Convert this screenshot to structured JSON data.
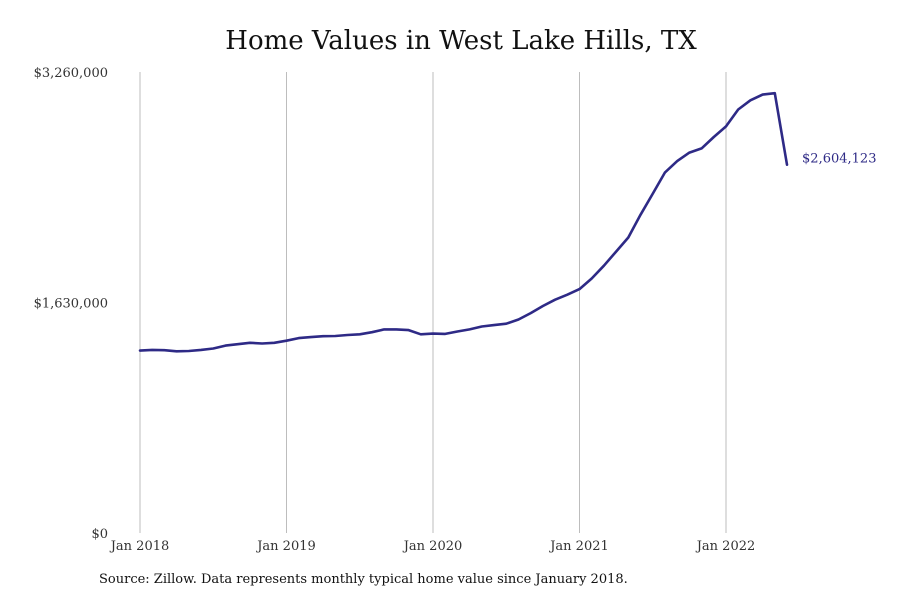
{
  "chart_data": {
    "type": "line",
    "title": "Home Values in West Lake Hills, TX",
    "xlabel": "",
    "ylabel": "",
    "y_tick_values": [
      0,
      1630000,
      3260000
    ],
    "y_tick_labels": [
      "$0",
      "$1,630,000",
      "$3,260,000"
    ],
    "ylim": [
      0,
      3260000
    ],
    "x_tick_labels": [
      "Jan 2018",
      "Jan 2019",
      "Jan 2020",
      "Jan 2021",
      "Jan 2022"
    ],
    "grid": "vertical",
    "legend": "none",
    "colors": {
      "line": "#2e2a86",
      "grid": "#bdbdbd"
    },
    "end_label": "$2,604,123",
    "series": [
      {
        "x": [
          "2018-01",
          "2018-02",
          "2018-03",
          "2018-04",
          "2018-05",
          "2018-06",
          "2018-07",
          "2018-08",
          "2018-09",
          "2018-10",
          "2018-11",
          "2018-12",
          "2019-01",
          "2019-02",
          "2019-03",
          "2019-04",
          "2019-05",
          "2019-06",
          "2019-07",
          "2019-08",
          "2019-09",
          "2019-10",
          "2019-11",
          "2019-12",
          "2020-01",
          "2020-02",
          "2020-03",
          "2020-04",
          "2020-05",
          "2020-06",
          "2020-07",
          "2020-08",
          "2020-09",
          "2020-10",
          "2020-11",
          "2020-12",
          "2021-01",
          "2021-02",
          "2021-03",
          "2021-04",
          "2021-05",
          "2021-06",
          "2021-07",
          "2021-08",
          "2021-09",
          "2021-10",
          "2021-11",
          "2021-12",
          "2022-01",
          "2022-02",
          "2022-03",
          "2022-04",
          "2022-05",
          "2022-06"
        ],
        "values": [
          1290000,
          1295000,
          1293000,
          1285000,
          1287000,
          1295000,
          1305000,
          1325000,
          1335000,
          1345000,
          1340000,
          1345000,
          1360000,
          1378000,
          1385000,
          1392000,
          1393000,
          1400000,
          1405000,
          1420000,
          1440000,
          1440000,
          1435000,
          1405000,
          1410000,
          1408000,
          1425000,
          1440000,
          1460000,
          1470000,
          1480000,
          1510000,
          1555000,
          1605000,
          1650000,
          1685000,
          1725000,
          1800000,
          1890000,
          1990000,
          2090000,
          2250000,
          2400000,
          2550000,
          2630000,
          2690000,
          2720000,
          2800000,
          2875000,
          2995000,
          3060000,
          3100000,
          3110000,
          2604123
        ]
      }
    ]
  },
  "source_note": "Source: Zillow. Data represents monthly typical home value since January 2018."
}
